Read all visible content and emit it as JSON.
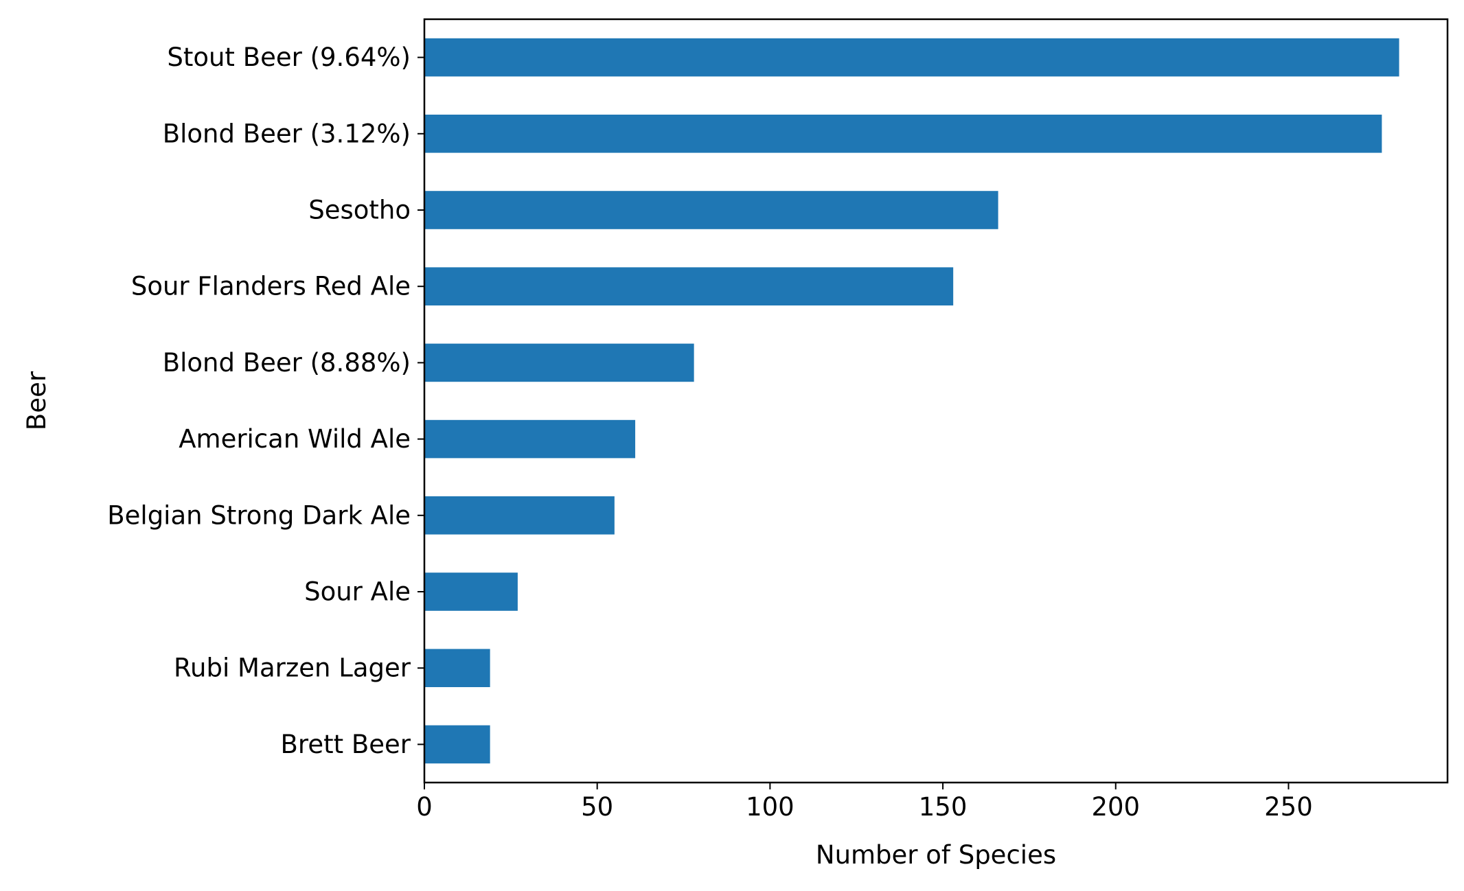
{
  "chart_data": {
    "type": "bar",
    "orientation": "horizontal",
    "title": "",
    "xlabel": "Number of Species",
    "ylabel": "Beer",
    "categories": [
      "Stout Beer (9.64%)",
      "Blond Beer (3.12%)",
      "Sesotho",
      "Sour Flanders Red Ale",
      "Blond Beer (8.88%)",
      "American Wild Ale",
      "Belgian Strong Dark Ale",
      "Sour Ale",
      "Rubi Marzen Lager",
      "Brett Beer"
    ],
    "values": [
      282,
      277,
      166,
      153,
      78,
      61,
      55,
      27,
      19,
      19
    ],
    "xlim": [
      0,
      296
    ],
    "xticks": [
      0,
      50,
      100,
      150,
      200,
      250
    ],
    "grid": false,
    "legend": "none",
    "bar_color": "#1f77b4"
  }
}
